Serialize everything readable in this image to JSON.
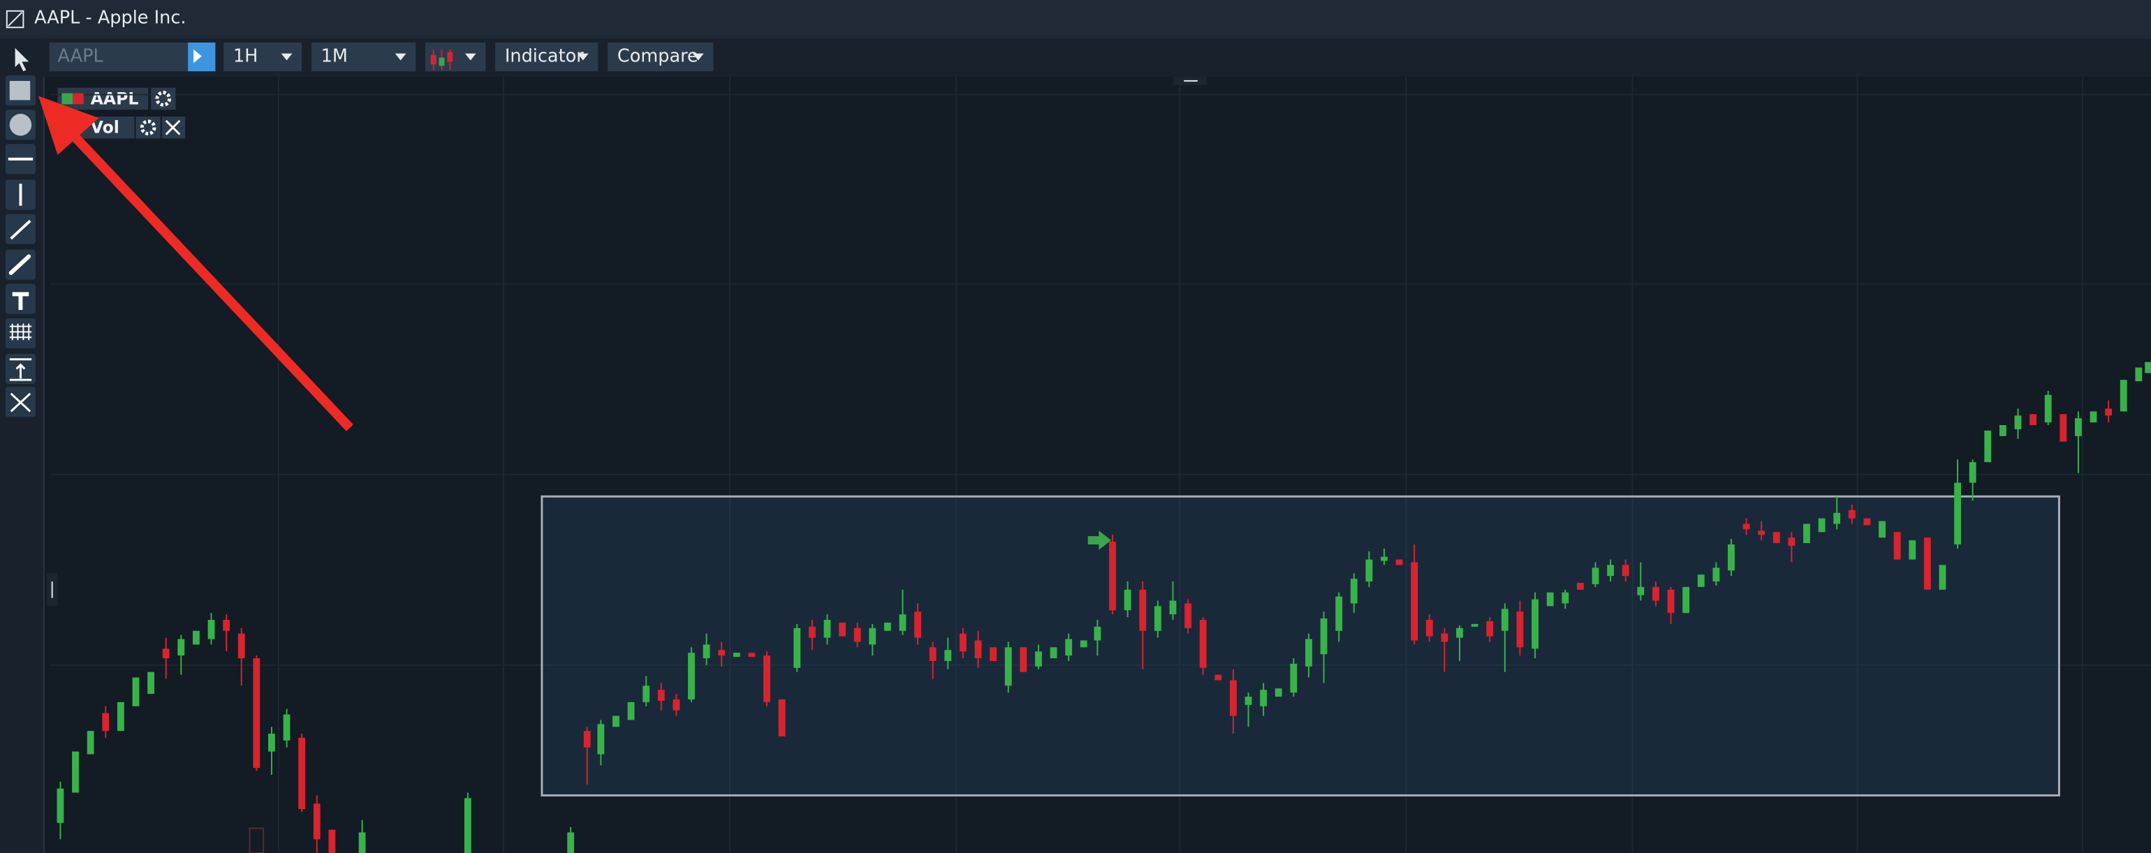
{
  "window": {
    "title": "AAPL - Apple Inc."
  },
  "toolbar": {
    "symbol_placeholder": "AAPL",
    "interval": "1H",
    "range": "1M",
    "indicator": "Indicator",
    "compare": "Compare"
  },
  "legend": {
    "series": "AAPL",
    "volume": "Vol"
  }
}
